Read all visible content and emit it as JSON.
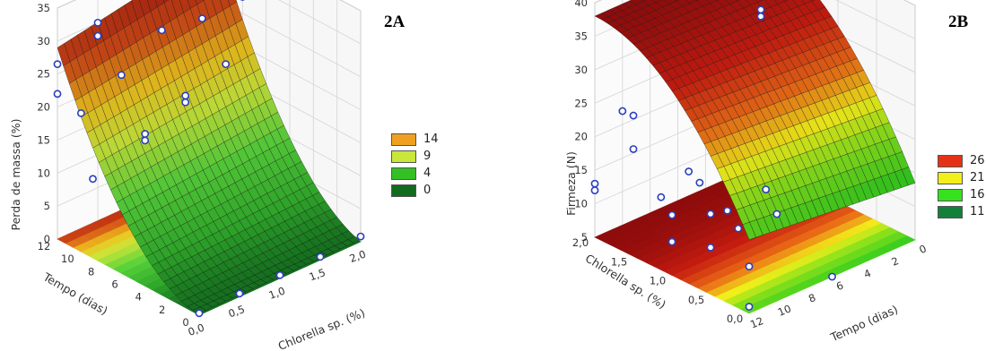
{
  "chart_data": [
    {
      "panel_label": "2A",
      "type": "surface3d",
      "zlabel": "Perda de massa (%)",
      "xlabel": "Chlorella sp. (%)",
      "ylabel": "Tempo (dias)",
      "x_ticks": [
        "0,0",
        "0,5",
        "1,0",
        "1,5",
        "2,0"
      ],
      "y_ticks": [
        "0",
        "2",
        "4",
        "6",
        "8",
        "10",
        "12"
      ],
      "z_ticks": [
        "0",
        "5",
        "10",
        "15",
        "20",
        "25",
        "30",
        "35"
      ],
      "xlim": [
        0,
        2
      ],
      "ylim": [
        0,
        12
      ],
      "zlim": [
        0,
        35
      ],
      "legend": [
        {
          "label": "14",
          "color": "#f0a020"
        },
        {
          "label": "9",
          "color": "#c9e63a"
        },
        {
          "label": "4",
          "color": "#33c024"
        },
        {
          "label": "0",
          "color": "#136b1e"
        }
      ],
      "points": [
        {
          "x": 0.0,
          "y": 12,
          "z": 26.5
        },
        {
          "x": 0.0,
          "y": 12,
          "z": 22
        },
        {
          "x": 0.0,
          "y": 10,
          "z": 21
        },
        {
          "x": 0.0,
          "y": 9,
          "z": 12
        },
        {
          "x": 0.5,
          "y": 12,
          "z": 30
        },
        {
          "x": 0.5,
          "y": 12,
          "z": 28
        },
        {
          "x": 0.5,
          "y": 10,
          "z": 24
        },
        {
          "x": 0.5,
          "y": 8,
          "z": 17
        },
        {
          "x": 0.5,
          "y": 8,
          "z": 16
        },
        {
          "x": 1.0,
          "y": 12,
          "z": 33
        },
        {
          "x": 1.0,
          "y": 12,
          "z": 31.5
        },
        {
          "x": 1.0,
          "y": 10,
          "z": 28
        },
        {
          "x": 1.0,
          "y": 8,
          "z": 20
        },
        {
          "x": 1.0,
          "y": 8,
          "z": 19
        },
        {
          "x": 1.5,
          "y": 12,
          "z": 35
        },
        {
          "x": 1.5,
          "y": 12,
          "z": 30
        },
        {
          "x": 1.5,
          "y": 10,
          "z": 27
        },
        {
          "x": 1.5,
          "y": 8,
          "z": 22
        },
        {
          "x": 2.0,
          "y": 12,
          "z": 35.5
        },
        {
          "x": 2.0,
          "y": 12,
          "z": 33.5
        },
        {
          "x": 2.0,
          "y": 12,
          "z": 31
        },
        {
          "x": 2.0,
          "y": 10,
          "z": 27.5
        },
        {
          "x": 0.0,
          "y": 0,
          "z": 0.3
        },
        {
          "x": 0.5,
          "y": 0,
          "z": 0.5
        },
        {
          "x": 1.0,
          "y": 0,
          "z": 0.5
        },
        {
          "x": 1.5,
          "y": 0,
          "z": 0.5
        },
        {
          "x": 2.0,
          "y": 0,
          "z": 0.8
        }
      ]
    },
    {
      "panel_label": "2B",
      "type": "surface3d",
      "zlabel": "Firmeza (N)",
      "xlabel": "Tempo (dias)",
      "ylabel": "Chlorella sp. (%)",
      "x_ticks": [
        "12",
        "10",
        "8",
        "6",
        "4",
        "2",
        "0"
      ],
      "y_ticks": [
        "0,0",
        "0,5",
        "1,0",
        "1,5",
        "2,0"
      ],
      "z_ticks": [
        "5",
        "10",
        "15",
        "20",
        "25",
        "30",
        "35",
        "40"
      ],
      "xlim": [
        12,
        0
      ],
      "ylim": [
        0,
        2
      ],
      "zlim": [
        5,
        40
      ],
      "legend": [
        {
          "label": "26",
          "color": "#e53216"
        },
        {
          "label": "21",
          "color": "#f2ef1a"
        },
        {
          "label": "16",
          "color": "#35e21d"
        },
        {
          "label": "11",
          "color": "#13803a"
        }
      ],
      "points": [
        {
          "x": 12,
          "y": 2.0,
          "z": 13
        },
        {
          "x": 12,
          "y": 2.0,
          "z": 12
        },
        {
          "x": 12,
          "y": 1.5,
          "z": 21
        },
        {
          "x": 12,
          "y": 1.5,
          "z": 26
        },
        {
          "x": 12,
          "y": 1.0,
          "z": 14
        },
        {
          "x": 12,
          "y": 1.0,
          "z": 10
        },
        {
          "x": 12,
          "y": 0.5,
          "z": 17
        },
        {
          "x": 12,
          "y": 0.5,
          "z": 12
        },
        {
          "x": 12,
          "y": 0.0,
          "z": 12
        },
        {
          "x": 12,
          "y": 0.0,
          "z": 6
        },
        {
          "x": 10,
          "y": 2.0,
          "z": 22
        },
        {
          "x": 10,
          "y": 1.5,
          "z": 12
        },
        {
          "x": 10,
          "y": 1.0,
          "z": 17
        },
        {
          "x": 10,
          "y": 0.5,
          "z": 13
        },
        {
          "x": 10,
          "y": 0.0,
          "z": 18
        },
        {
          "x": 8,
          "y": 1.5,
          "z": 14
        },
        {
          "x": 8,
          "y": 1.0,
          "z": 11
        },
        {
          "x": 8,
          "y": 0.5,
          "z": 17
        },
        {
          "x": 6,
          "y": 0.0,
          "z": 5
        },
        {
          "x": 6,
          "y": 2.0,
          "z": 38
        },
        {
          "x": 4,
          "y": 2.0,
          "z": 36
        },
        {
          "x": 2,
          "y": 2.0,
          "z": 32
        },
        {
          "x": 0,
          "y": 2.0,
          "z": 28
        },
        {
          "x": 0,
          "y": 2.0,
          "z": 27
        }
      ]
    }
  ]
}
